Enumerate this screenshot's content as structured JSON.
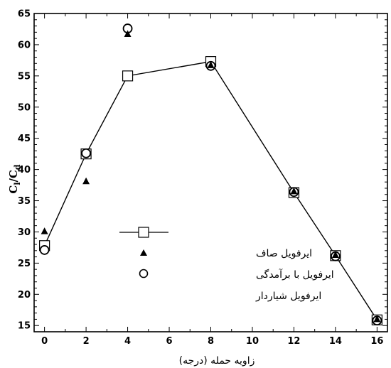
{
  "chart_data": {
    "type": "scatter",
    "title": "",
    "xlabel": "زاویه حمله (درجه)",
    "ylabel_main": "C",
    "ylabel_sub1": "l",
    "ylabel_slash": "/C",
    "ylabel_sub2": "d",
    "xlim": [
      -0.5,
      16.5
    ],
    "ylim": [
      14,
      65
    ],
    "xticks": [
      0,
      2,
      4,
      6,
      8,
      10,
      12,
      14,
      16
    ],
    "yticks": [
      15,
      20,
      25,
      30,
      35,
      40,
      45,
      50,
      55,
      60,
      65
    ],
    "legend_placement": "center-left",
    "series": [
      {
        "name": "ایرفویل صاف",
        "marker": "line-square",
        "x": [
          0,
          2,
          4,
          8,
          12,
          14,
          16
        ],
        "y": [
          27.8,
          42.5,
          55.0,
          57.3,
          36.3,
          26.2,
          15.9
        ]
      },
      {
        "name": "ایرفویل با برآمدگی",
        "marker": "triangle",
        "x": [
          0,
          2,
          4,
          8,
          12,
          14,
          16
        ],
        "y": [
          30.1,
          38.1,
          61.7,
          56.7,
          36.5,
          26.3,
          16.0
        ]
      },
      {
        "name": "ایرفویل شیاردار",
        "marker": "circle",
        "x": [
          0,
          2,
          4,
          8,
          12,
          14,
          16
        ],
        "y": [
          27.1,
          42.6,
          62.6,
          56.6,
          36.4,
          26.1,
          15.8
        ]
      }
    ]
  }
}
